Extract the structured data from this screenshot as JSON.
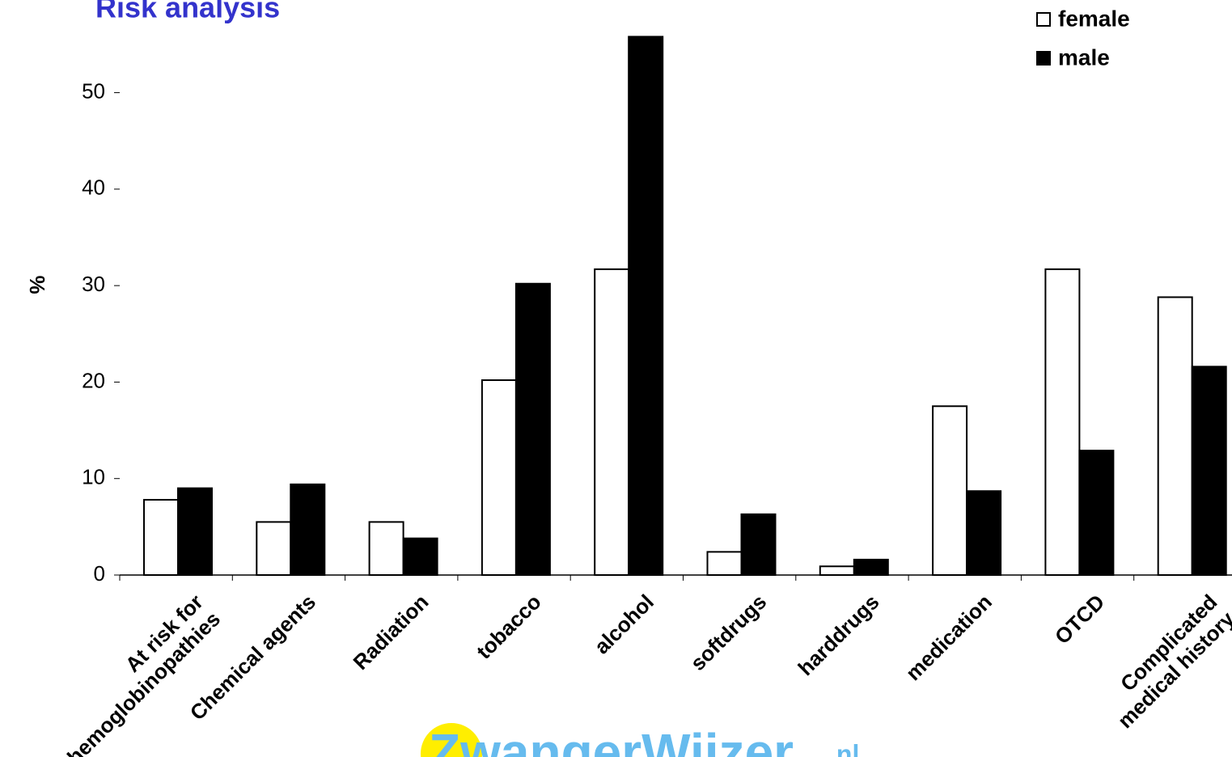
{
  "chart_data": {
    "type": "bar",
    "title": "Risk analysis",
    "y_label": "%",
    "categories": [
      "At risk for\nhemoglobinopathies",
      "Chemical agents",
      "Radiation",
      "tobacco",
      "alcohol",
      "softdrugs",
      "harddrugs",
      "medication",
      "OTCD",
      "Complicated\nmedical history"
    ],
    "series": [
      {
        "name": "female",
        "color": "#ffffff",
        "values": [
          7.8,
          5.5,
          5.5,
          20.2,
          31.7,
          2.4,
          0.9,
          17.5,
          31.7,
          28.8
        ]
      },
      {
        "name": "male",
        "color": "#000000",
        "values": [
          9.0,
          9.4,
          3.8,
          30.2,
          55.8,
          6.3,
          1.6,
          8.7,
          12.9,
          21.6
        ]
      }
    ],
    "ylim": [
      0,
      56
    ],
    "yticks": [
      0,
      10,
      20,
      30,
      40,
      50
    ],
    "grid": false,
    "legend": "top-right",
    "logo": {
      "text": "ZwangerWijzer",
      "suffix": ".nl"
    }
  }
}
